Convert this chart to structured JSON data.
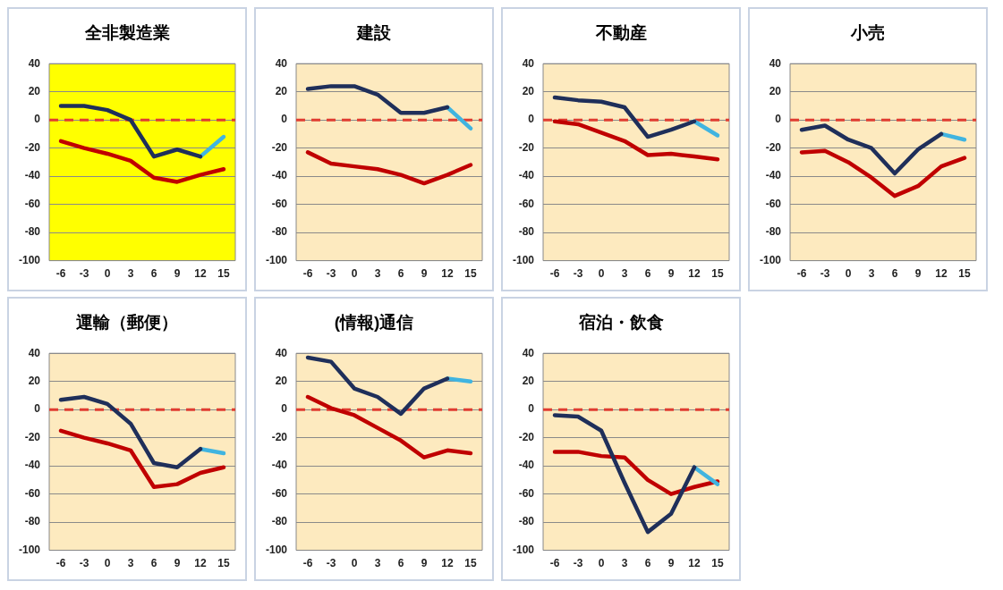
{
  "chart_data": [
    {
      "type": "line",
      "title": "全非製造業",
      "categories": [
        "-6",
        "-3",
        "0",
        "3",
        "6",
        "9",
        "12",
        "15"
      ],
      "ylim": [
        -100,
        40
      ],
      "yticks": [
        -100,
        -80,
        -60,
        -40,
        -20,
        0,
        20,
        40
      ],
      "grid": "y",
      "marker": "none",
      "line_style": "solid",
      "ref_lines": [
        {
          "axis": "y",
          "value": 0,
          "color": "#e03c31",
          "line_style": "dashed"
        }
      ],
      "series": [
        {
          "color": "#1f2f5a",
          "values": [
            10,
            10,
            7,
            0,
            -26,
            -21,
            -26,
            null
          ]
        },
        {
          "color": "#40b4e0",
          "values": [
            null,
            null,
            null,
            null,
            null,
            null,
            -26,
            -12
          ]
        },
        {
          "color": "#c00000",
          "values": [
            -15,
            -20,
            -24,
            -29,
            -41,
            -44,
            -39,
            -35
          ]
        }
      ]
    },
    {
      "type": "line",
      "title": "建設",
      "categories": [
        "-6",
        "-3",
        "0",
        "3",
        "6",
        "9",
        "12",
        "15"
      ],
      "ylim": [
        -100,
        40
      ],
      "yticks": [
        -100,
        -80,
        -60,
        -40,
        -20,
        0,
        20,
        40
      ],
      "grid": "y",
      "marker": "none",
      "line_style": "solid",
      "ref_lines": [
        {
          "axis": "y",
          "value": 0,
          "color": "#e03c31",
          "line_style": "dashed"
        }
      ],
      "series": [
        {
          "color": "#1f2f5a",
          "values": [
            22,
            24,
            24,
            18,
            5,
            5,
            9,
            null
          ]
        },
        {
          "color": "#40b4e0",
          "values": [
            null,
            null,
            null,
            null,
            null,
            null,
            9,
            -6
          ]
        },
        {
          "color": "#c00000",
          "values": [
            -23,
            -31,
            -33,
            -35,
            -39,
            -45,
            -39,
            -32
          ]
        }
      ]
    },
    {
      "type": "line",
      "title": "不動産",
      "categories": [
        "-6",
        "-3",
        "0",
        "3",
        "6",
        "9",
        "12",
        "15"
      ],
      "ylim": [
        -100,
        40
      ],
      "yticks": [
        -100,
        -80,
        -60,
        -40,
        -20,
        0,
        20,
        40
      ],
      "grid": "y",
      "marker": "none",
      "line_style": "solid",
      "ref_lines": [
        {
          "axis": "y",
          "value": 0,
          "color": "#e03c31",
          "line_style": "dashed"
        }
      ],
      "series": [
        {
          "color": "#1f2f5a",
          "values": [
            16,
            14,
            13,
            9,
            -12,
            -7,
            -1,
            null
          ]
        },
        {
          "color": "#40b4e0",
          "values": [
            null,
            null,
            null,
            null,
            null,
            null,
            -1,
            -11
          ]
        },
        {
          "color": "#c00000",
          "values": [
            -1,
            -3,
            -9,
            -15,
            -25,
            -24,
            -26,
            -28
          ]
        }
      ]
    },
    {
      "type": "line",
      "title": "小売",
      "categories": [
        "-6",
        "-3",
        "0",
        "3",
        "6",
        "9",
        "12",
        "15"
      ],
      "ylim": [
        -100,
        40
      ],
      "yticks": [
        -100,
        -80,
        -60,
        -40,
        -20,
        0,
        20,
        40
      ],
      "grid": "y",
      "marker": "none",
      "line_style": "solid",
      "ref_lines": [
        {
          "axis": "y",
          "value": 0,
          "color": "#e03c31",
          "line_style": "dashed"
        }
      ],
      "series": [
        {
          "color": "#1f2f5a",
          "values": [
            -7,
            -4,
            -14,
            -20,
            -38,
            -21,
            -10,
            null
          ]
        },
        {
          "color": "#40b4e0",
          "values": [
            null,
            null,
            null,
            null,
            null,
            null,
            -10,
            -14
          ]
        },
        {
          "color": "#c00000",
          "values": [
            -23,
            -22,
            -30,
            -41,
            -54,
            -47,
            -33,
            -27
          ]
        }
      ]
    },
    {
      "type": "line",
      "title": "運輸（郵便）",
      "categories": [
        "-6",
        "-3",
        "0",
        "3",
        "6",
        "9",
        "12",
        "15"
      ],
      "ylim": [
        -100,
        40
      ],
      "yticks": [
        -100,
        -80,
        -60,
        -40,
        -20,
        0,
        20,
        40
      ],
      "grid": "y",
      "marker": "none",
      "line_style": "solid",
      "ref_lines": [
        {
          "axis": "y",
          "value": 0,
          "color": "#e03c31",
          "line_style": "dashed"
        }
      ],
      "series": [
        {
          "color": "#1f2f5a",
          "values": [
            7,
            9,
            4,
            -10,
            -38,
            -41,
            -28,
            null
          ]
        },
        {
          "color": "#40b4e0",
          "values": [
            null,
            null,
            null,
            null,
            null,
            null,
            -28,
            -31
          ]
        },
        {
          "color": "#c00000",
          "values": [
            -15,
            -20,
            -24,
            -29,
            -55,
            -53,
            -45,
            -41
          ]
        }
      ]
    },
    {
      "type": "line",
      "title": "(情報)通信",
      "categories": [
        "-6",
        "-3",
        "0",
        "3",
        "6",
        "9",
        "12",
        "15"
      ],
      "ylim": [
        -100,
        40
      ],
      "yticks": [
        -100,
        -80,
        -60,
        -40,
        -20,
        0,
        20,
        40
      ],
      "grid": "y",
      "marker": "none",
      "line_style": "solid",
      "ref_lines": [
        {
          "axis": "y",
          "value": 0,
          "color": "#e03c31",
          "line_style": "dashed"
        }
      ],
      "series": [
        {
          "color": "#1f2f5a",
          "values": [
            37,
            34,
            15,
            9,
            -3,
            15,
            22,
            null
          ]
        },
        {
          "color": "#40b4e0",
          "values": [
            null,
            null,
            null,
            null,
            null,
            null,
            22,
            20
          ]
        },
        {
          "color": "#c00000",
          "values": [
            9,
            1,
            -4,
            -13,
            -22,
            -34,
            -29,
            -31
          ]
        }
      ]
    },
    {
      "type": "line",
      "title": "宿泊・飲食",
      "categories": [
        "-6",
        "-3",
        "0",
        "3",
        "6",
        "9",
        "12",
        "15"
      ],
      "ylim": [
        -100,
        40
      ],
      "yticks": [
        -100,
        -80,
        -60,
        -40,
        -20,
        0,
        20,
        40
      ],
      "grid": "y",
      "marker": "none",
      "line_style": "solid",
      "ref_lines": [
        {
          "axis": "y",
          "value": 0,
          "color": "#e03c31",
          "line_style": "dashed"
        }
      ],
      "series": [
        {
          "color": "#1f2f5a",
          "values": [
            -4,
            -5,
            -15,
            -52,
            -87,
            -74,
            -41,
            null
          ]
        },
        {
          "color": "#40b4e0",
          "values": [
            null,
            null,
            null,
            null,
            null,
            null,
            -41,
            -53
          ]
        },
        {
          "color": "#c00000",
          "values": [
            -30,
            -30,
            -33,
            -34,
            -50,
            -60,
            -55,
            -51
          ]
        }
      ]
    }
  ]
}
